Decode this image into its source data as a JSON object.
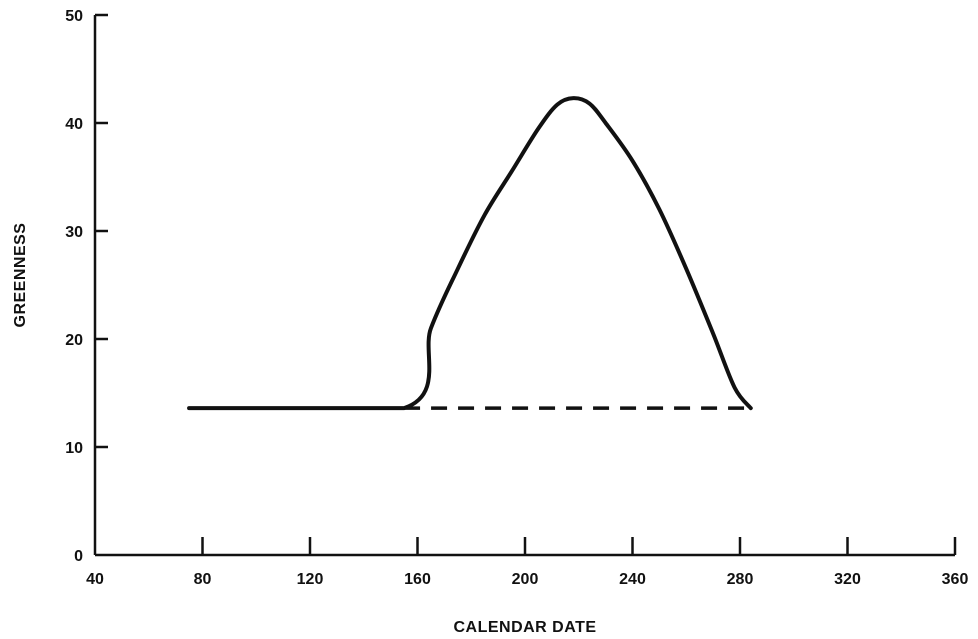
{
  "chart_data": {
    "type": "line",
    "title": "",
    "xlabel": "CALENDAR DATE",
    "ylabel": "GREENNESS",
    "xlim": [
      40,
      360
    ],
    "ylim": [
      0,
      50
    ],
    "x_ticks": [
      40,
      80,
      120,
      160,
      200,
      240,
      280,
      320,
      360
    ],
    "y_ticks": [
      0,
      10,
      20,
      30,
      40,
      50
    ],
    "grid": false,
    "legend": "none",
    "series": [
      {
        "style": "solid",
        "x": [
          75,
          155,
          165,
          175,
          185,
          195,
          205,
          212,
          218,
          224,
          230,
          240,
          250,
          260,
          270,
          278,
          284
        ],
        "y": [
          13.6,
          13.6,
          21.0,
          26.5,
          31.5,
          35.5,
          39.5,
          41.7,
          42.3,
          41.8,
          40.0,
          36.5,
          32.0,
          26.5,
          20.5,
          15.5,
          13.6
        ]
      },
      {
        "style": "dashed",
        "x": [
          155,
          284
        ],
        "y": [
          13.6,
          13.6
        ]
      }
    ],
    "colors": {
      "line": "#111111",
      "axis": "#111111"
    }
  }
}
